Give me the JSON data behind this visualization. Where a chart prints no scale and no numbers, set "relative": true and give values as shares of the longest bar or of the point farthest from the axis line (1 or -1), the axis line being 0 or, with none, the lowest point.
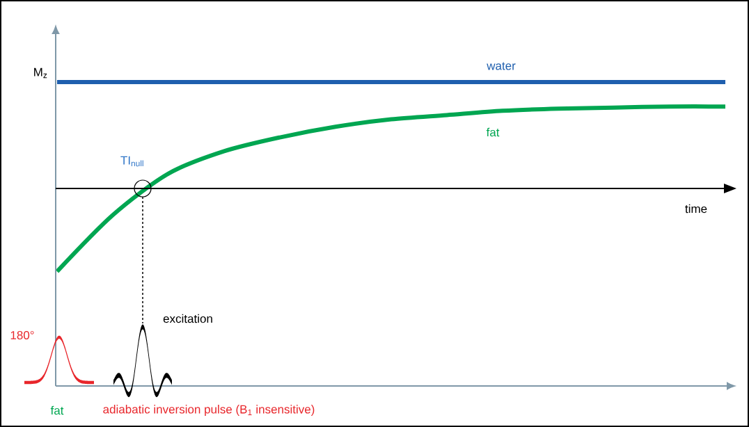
{
  "chart_data": {
    "type": "line",
    "relative": true,
    "xlabel": "time",
    "ylabel": "M$_{z}$",
    "categories": [
      null,
      null,
      null,
      null,
      null,
      null,
      null,
      null,
      null,
      null,
      null,
      null,
      null
    ],
    "series": [
      {
        "name": "water",
        "color": "#1f5fae",
        "values": [
          1,
          1,
          1,
          1,
          1,
          1,
          1,
          1,
          1,
          1,
          1,
          1,
          1
        ]
      },
      {
        "name": "fat",
        "color": "#00a651",
        "values": [
          -0.78,
          -0.25,
          0.14,
          0.35,
          0.48,
          0.58,
          0.65,
          0.69,
          0.73,
          0.75,
          0.76,
          0.77,
          0.77
        ]
      }
    ],
    "annotations": [
      "TI$_{null}$",
      "excitation",
      "180°",
      "fat",
      "adiabatic inversion pulse (B$_{1}$ insensitive)"
    ]
  }
}
